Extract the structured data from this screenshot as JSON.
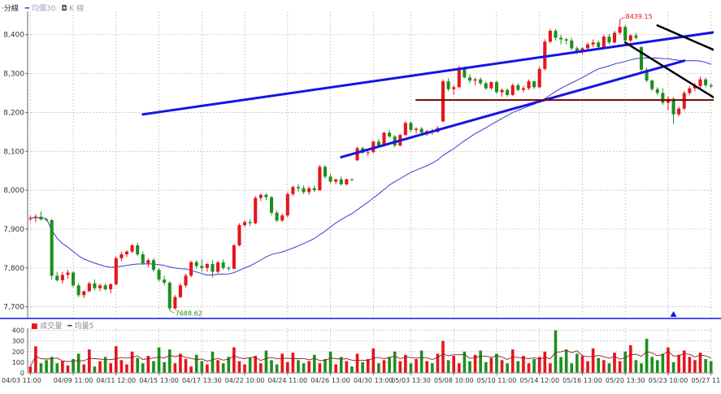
{
  "legend": {
    "interval": "·分線",
    "ma_label": "均價30",
    "k_label": "K 線",
    "volume_label": "成交量",
    "volume_ma_label": "均量5"
  },
  "colors": {
    "up": "#e8141b",
    "down": "#1e8f1e",
    "ma": "#3a3ad0",
    "channel": "#1414e6",
    "down_channel": "#000000",
    "support": "#7a0000",
    "grid": "#bcbcbc",
    "volume_ma": "#8a2020"
  },
  "annotations": {
    "max_label": "8439.15",
    "min_label": "7688.62"
  },
  "chart_data": [
    {
      "type": "candlestick",
      "ylim": [
        7670,
        8460
      ],
      "y_ticks": [
        7700,
        7800,
        7900,
        8000,
        8100,
        8200,
        8300,
        8400
      ],
      "grid": true,
      "x_tick_labels": [
        "04/03 11:00",
        "04/09 11:00",
        "04/11 12:00",
        "04/15 13:00",
        "04/17 13:30",
        "04/22 10:00",
        "04/24 11:00",
        "04/26 13:00",
        "04/30 13:00",
        "05/03 13:30",
        "05/08 10:00",
        "05/10 11:00",
        "05/14 12:00",
        "05/16 13:00",
        "05/20 13:30",
        "05/23 10:00",
        "05/27 11:00"
      ],
      "key_values": {
        "high": 8439.15,
        "low": 7688.62
      },
      "ma": {
        "name": "均價30",
        "period": 30
      },
      "trendlines": [
        {
          "name": "upper-channel",
          "from": [
            21,
            8195
          ],
          "to": [
            132,
            8415
          ]
        },
        {
          "name": "lower-channel",
          "from": [
            58,
            8085
          ],
          "to": [
            122,
            8333
          ]
        },
        {
          "name": "support",
          "from": [
            72,
            8232
          ],
          "to": [
            147,
            8232
          ]
        },
        {
          "name": "down-upper",
          "from": [
            117,
            8424
          ],
          "to": [
            146,
            8250
          ]
        },
        {
          "name": "down-lower",
          "from": [
            111,
            8380
          ],
          "to": [
            139,
            8140
          ]
        }
      ],
      "candles": [
        [
          7928,
          7935,
          7920,
          7928
        ],
        [
          7928,
          7938,
          7918,
          7932
        ],
        [
          7932,
          7945,
          7922,
          7925
        ],
        [
          7925,
          7928,
          7920,
          7923
        ],
        [
          7923,
          7926,
          7770,
          7780
        ],
        [
          7780,
          7790,
          7765,
          7768
        ],
        [
          7768,
          7790,
          7760,
          7782
        ],
        [
          7782,
          7795,
          7772,
          7788
        ],
        [
          7788,
          7792,
          7750,
          7755
        ],
        [
          7755,
          7760,
          7725,
          7730
        ],
        [
          7730,
          7742,
          7722,
          7740
        ],
        [
          7740,
          7765,
          7738,
          7760
        ],
        [
          7760,
          7770,
          7742,
          7748
        ],
        [
          7748,
          7760,
          7740,
          7755
        ],
        [
          7755,
          7760,
          7742,
          7745
        ],
        [
          7745,
          7760,
          7735,
          7758
        ],
        [
          7758,
          7830,
          7755,
          7825
        ],
        [
          7825,
          7842,
          7818,
          7835
        ],
        [
          7835,
          7845,
          7828,
          7842
        ],
        [
          7842,
          7862,
          7838,
          7858
        ],
        [
          7858,
          7865,
          7830,
          7835
        ],
        [
          7835,
          7842,
          7808,
          7812
        ],
        [
          7812,
          7825,
          7802,
          7820
        ],
        [
          7820,
          7825,
          7790,
          7795
        ],
        [
          7795,
          7800,
          7765,
          7770
        ],
        [
          7770,
          7780,
          7755,
          7762
        ],
        [
          7762,
          7766,
          7690,
          7696
        ],
        [
          7696,
          7730,
          7692,
          7725
        ],
        [
          7725,
          7760,
          7722,
          7755
        ],
        [
          7755,
          7785,
          7750,
          7780
        ],
        [
          7780,
          7818,
          7776,
          7815
        ],
        [
          7815,
          7820,
          7798,
          7805
        ],
        [
          7805,
          7822,
          7790,
          7800
        ],
        [
          7800,
          7812,
          7790,
          7810
        ],
        [
          7810,
          7820,
          7775,
          7790
        ],
        [
          7790,
          7818,
          7785,
          7814
        ],
        [
          7814,
          7822,
          7795,
          7800
        ],
        [
          7800,
          7805,
          7792,
          7798
        ],
        [
          7798,
          7862,
          7796,
          7858
        ],
        [
          7858,
          7915,
          7855,
          7910
        ],
        [
          7910,
          7922,
          7905,
          7918
        ],
        [
          7918,
          7925,
          7908,
          7915
        ],
        [
          7915,
          7985,
          7912,
          7980
        ],
        [
          7980,
          7992,
          7972,
          7988
        ],
        [
          7988,
          7992,
          7975,
          7982
        ],
        [
          7982,
          7985,
          7935,
          7942
        ],
        [
          7942,
          7948,
          7918,
          7922
        ],
        [
          7922,
          7940,
          7918,
          7935
        ],
        [
          7935,
          7995,
          7930,
          7990
        ],
        [
          7990,
          8012,
          7985,
          8008
        ],
        [
          8008,
          8015,
          7995,
          8005
        ],
        [
          8005,
          8012,
          7990,
          7995
        ],
        [
          7995,
          8010,
          7988,
          8005
        ],
        [
          8005,
          8012,
          7995,
          8000
        ],
        [
          8000,
          8065,
          7998,
          8060
        ],
        [
          8060,
          8065,
          8030,
          8035
        ],
        [
          8035,
          8042,
          8018,
          8022
        ],
        [
          8022,
          8030,
          8015,
          8028
        ],
        [
          8028,
          8035,
          8012,
          8015
        ],
        [
          8015,
          8030,
          8012,
          8028
        ],
        [
          8028,
          8030,
          8024,
          8027
        ],
        [
          8077,
          8112,
          8075,
          8108
        ],
        [
          8108,
          8112,
          8094,
          8096
        ],
        [
          8096,
          8102,
          8088,
          8098
        ],
        [
          8098,
          8128,
          8095,
          8125
        ],
        [
          8125,
          8132,
          8113,
          8115
        ],
        [
          8115,
          8150,
          8112,
          8148
        ],
        [
          8148,
          8155,
          8135,
          8138
        ],
        [
          8138,
          8142,
          8110,
          8115
        ],
        [
          8115,
          8145,
          8112,
          8142
        ],
        [
          8142,
          8178,
          8140,
          8173
        ],
        [
          8173,
          8177,
          8150,
          8155
        ],
        [
          8155,
          8162,
          8145,
          8158
        ],
        [
          8158,
          8162,
          8145,
          8148
        ],
        [
          8148,
          8155,
          8140,
          8152
        ],
        [
          8152,
          8158,
          8142,
          8150
        ],
        [
          8150,
          8165,
          8148,
          8160
        ],
        [
          8177,
          8285,
          8175,
          8280
        ],
        [
          8280,
          8288,
          8255,
          8260
        ],
        [
          8260,
          8270,
          8245,
          8265
        ],
        [
          8265,
          8320,
          8262,
          8315
        ],
        [
          8315,
          8318,
          8288,
          8290
        ],
        [
          8290,
          8298,
          8275,
          8282
        ],
        [
          8282,
          8290,
          8270,
          8285
        ],
        [
          8285,
          8290,
          8270,
          8275
        ],
        [
          8275,
          8280,
          8258,
          8262
        ],
        [
          8262,
          8280,
          8258,
          8278
        ],
        [
          8278,
          8282,
          8248,
          8252
        ],
        [
          8252,
          8262,
          8240,
          8258
        ],
        [
          8258,
          8262,
          8240,
          8245
        ],
        [
          8245,
          8275,
          8242,
          8270
        ],
        [
          8270,
          8275,
          8255,
          8258
        ],
        [
          8258,
          8268,
          8252,
          8262
        ],
        [
          8262,
          8285,
          8258,
          8280
        ],
        [
          8280,
          8282,
          8260,
          8265
        ],
        [
          8265,
          8318,
          8262,
          8312
        ],
        [
          8312,
          8388,
          8308,
          8382
        ],
        [
          8382,
          8415,
          8378,
          8410
        ],
        [
          8410,
          8415,
          8385,
          8392
        ],
        [
          8392,
          8400,
          8375,
          8388
        ],
        [
          8388,
          8392,
          8375,
          8385
        ],
        [
          8385,
          8392,
          8360,
          8365
        ],
        [
          8365,
          8370,
          8350,
          8355
        ],
        [
          8355,
          8368,
          8350,
          8365
        ],
        [
          8365,
          8380,
          8360,
          8375
        ],
        [
          8375,
          8388,
          8368,
          8380
        ],
        [
          8380,
          8385,
          8362,
          8368
        ],
        [
          8368,
          8400,
          8365,
          8395
        ],
        [
          8395,
          8402,
          8375,
          8380
        ],
        [
          8380,
          8410,
          8378,
          8405
        ],
        [
          8405,
          8439,
          8400,
          8420
        ],
        [
          8420,
          8425,
          8380,
          8385
        ],
        [
          8385,
          8402,
          8380,
          8398
        ],
        [
          8398,
          8405,
          8388,
          8392
        ],
        [
          8368,
          8370,
          8305,
          8310
        ],
        [
          8310,
          8315,
          8278,
          8282
        ],
        [
          8282,
          8285,
          8255,
          8260
        ],
        [
          8260,
          8265,
          8245,
          8250
        ],
        [
          8250,
          8262,
          8220,
          8225
        ],
        [
          8225,
          8242,
          8205,
          8235
        ],
        [
          8235,
          8240,
          8170,
          8195
        ],
        [
          8195,
          8215,
          8190,
          8210
        ],
        [
          8210,
          8255,
          8205,
          8250
        ],
        [
          8250,
          8268,
          8245,
          8262
        ],
        [
          8262,
          8275,
          8255,
          8268
        ],
        [
          8268,
          8292,
          8262,
          8285
        ],
        [
          8285,
          8290,
          8265,
          8270
        ],
        [
          8270,
          8275,
          8262,
          8267
        ]
      ]
    },
    {
      "type": "bar",
      "name": "成交量",
      "ylim": [
        0,
        420
      ],
      "y_ticks": [
        0,
        100,
        200,
        300,
        400
      ],
      "values": [
        60,
        250,
        90,
        120,
        150,
        90,
        110,
        70,
        130,
        180,
        80,
        220,
        60,
        110,
        150,
        90,
        250,
        120,
        80,
        200,
        140,
        90,
        160,
        110,
        240,
        100,
        220,
        90,
        180,
        130,
        60,
        170,
        110,
        80,
        200,
        120,
        90,
        150,
        240,
        110,
        80,
        140,
        160,
        90,
        210,
        120,
        80,
        180,
        100,
        190,
        120,
        90,
        110,
        170,
        90,
        130,
        200,
        80,
        150,
        110,
        60,
        180,
        100,
        130,
        230,
        90,
        120,
        150,
        200,
        110,
        170,
        90,
        130,
        210,
        110,
        90,
        180,
        300,
        120,
        160,
        90,
        200,
        110,
        170,
        210,
        100,
        140,
        180,
        120,
        90,
        220,
        110,
        160,
        90,
        130,
        150,
        200,
        90,
        400,
        150,
        220,
        90,
        180,
        160,
        110,
        230,
        140,
        120,
        90,
        190,
        110,
        200,
        260,
        120,
        90,
        320,
        150,
        120,
        180,
        240,
        100,
        170,
        210,
        150,
        120,
        190,
        130,
        110
      ]
    }
  ]
}
